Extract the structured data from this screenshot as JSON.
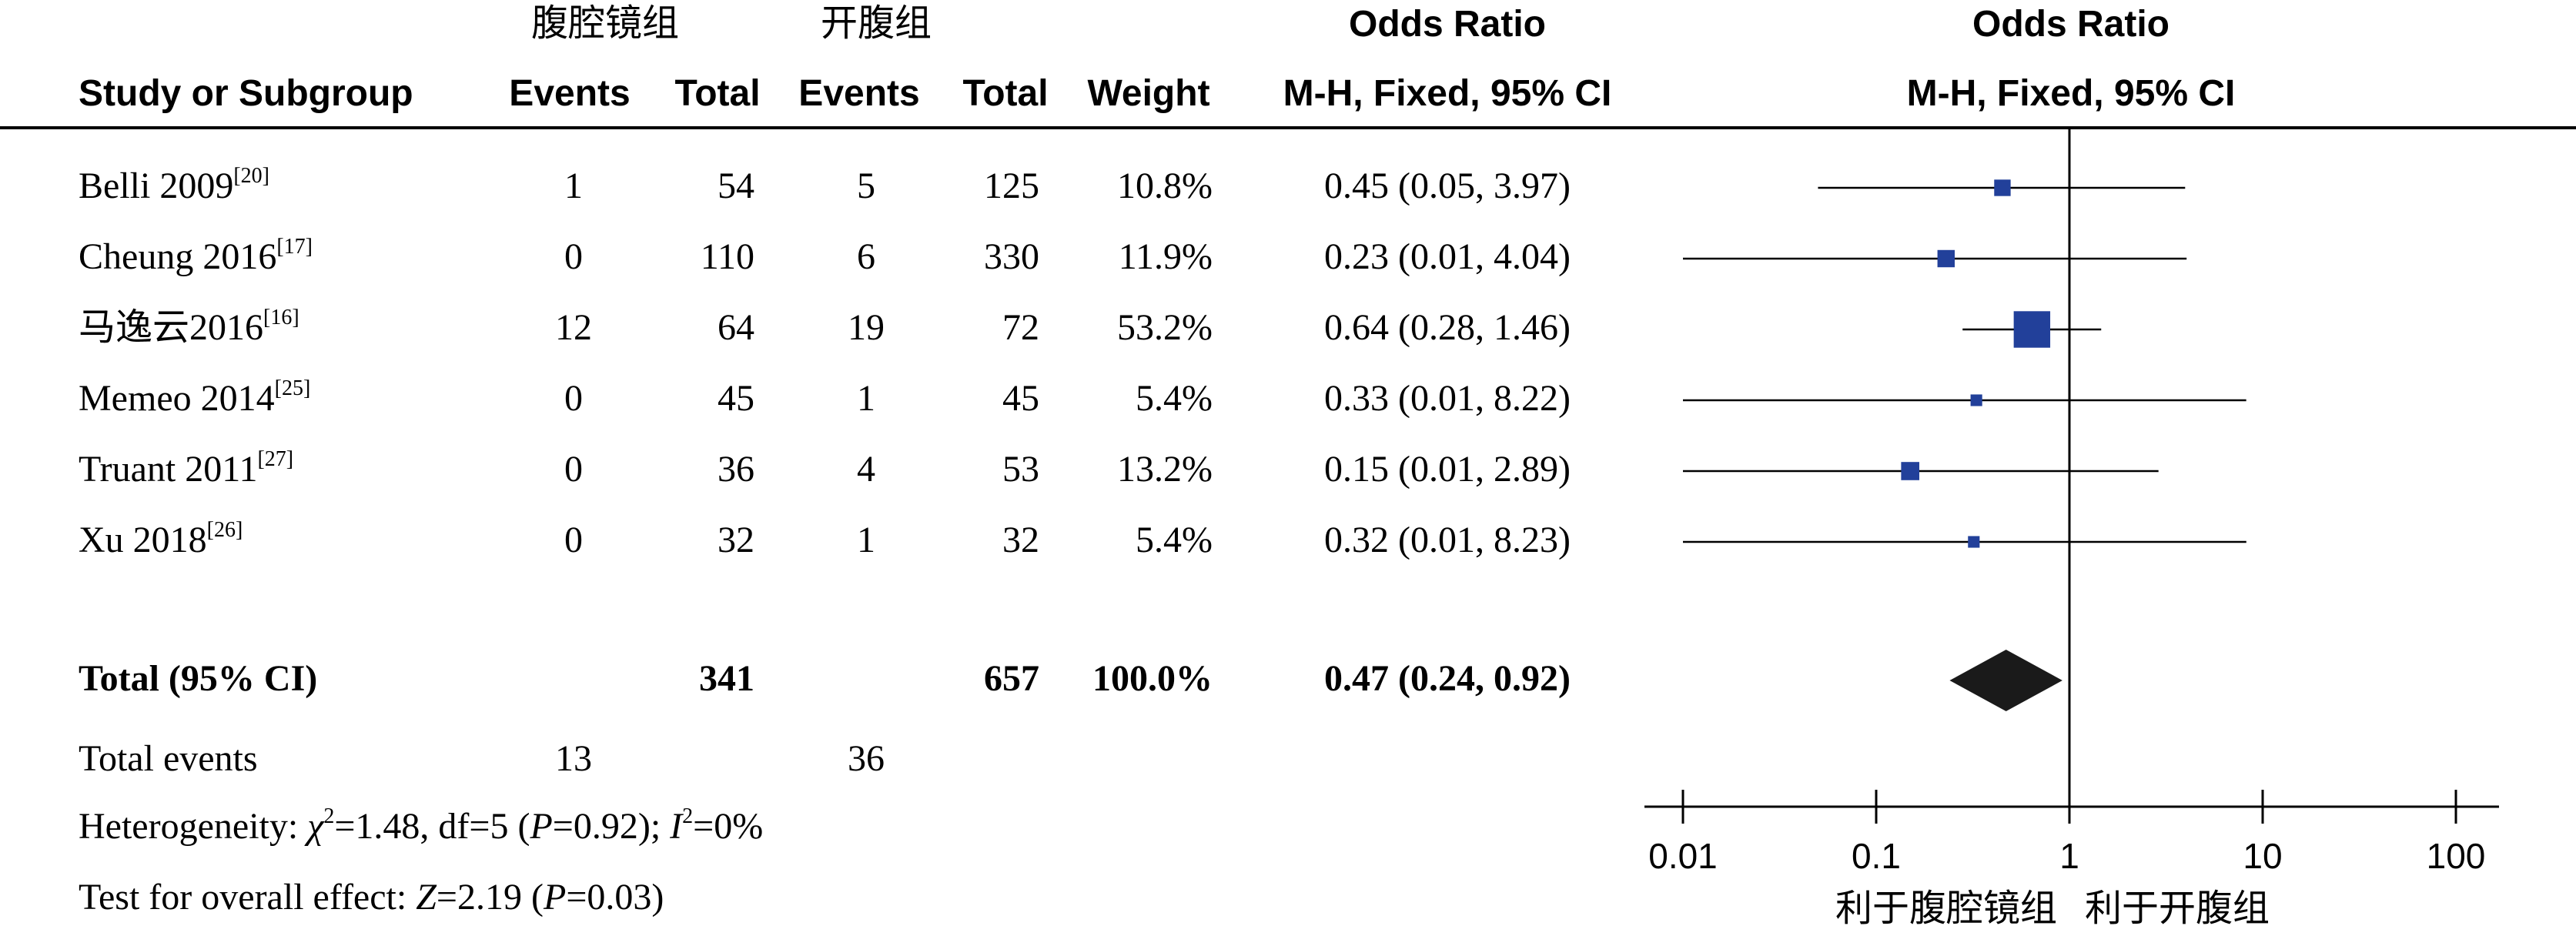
{
  "groups": {
    "experimental": "腹腔镜组",
    "control": "开腹组"
  },
  "headers": {
    "study": "Study or Subgroup",
    "events": "Events",
    "total": "Total",
    "weight": "Weight",
    "or_title": "Odds Ratio",
    "or_method": "M-H, Fixed, 95% CI",
    "plot_title": "Odds Ratio",
    "plot_method": "M-H, Fixed, 95% CI"
  },
  "rows": [
    {
      "study": "Belli 2009",
      "ref": "[20]",
      "e1": "1",
      "t1": "54",
      "e2": "5",
      "t2": "125",
      "weight": "10.8%",
      "ci": "0.45 (0.05, 3.97)"
    },
    {
      "study": "Cheung 2016",
      "ref": "[17]",
      "e1": "0",
      "t1": "110",
      "e2": "6",
      "t2": "330",
      "weight": "11.9%",
      "ci": "0.23 (0.01, 4.04)"
    },
    {
      "study": "马逸云2016",
      "ref": "[16]",
      "e1": "12",
      "t1": "64",
      "e2": "19",
      "t2": "72",
      "weight": "53.2%",
      "ci": "0.64 (0.28, 1.46)"
    },
    {
      "study": "Memeo 2014",
      "ref": "[25]",
      "e1": "0",
      "t1": "45",
      "e2": "1",
      "t2": "45",
      "weight": "5.4%",
      "ci": "0.33 (0.01, 8.22)"
    },
    {
      "study": "Truant 2011",
      "ref": "[27]",
      "e1": "0",
      "t1": "36",
      "e2": "4",
      "t2": "53",
      "weight": "13.2%",
      "ci": "0.15 (0.01, 2.89)"
    },
    {
      "study": "Xu 2018",
      "ref": "[26]",
      "e1": "0",
      "t1": "32",
      "e2": "1",
      "t2": "32",
      "weight": "5.4%",
      "ci": "0.32 (0.01, 8.23)"
    }
  ],
  "total": {
    "label": "Total (95% CI)",
    "t1": "341",
    "t2": "657",
    "weight": "100.0%",
    "ci": "0.47 (0.24, 0.92)"
  },
  "total_events": {
    "label": "Total events",
    "e1": "13",
    "e2": "36"
  },
  "heterogeneity": {
    "prefix": "Heterogeneity: ",
    "chi_sym": "χ",
    "chi_val": "=1.48, df=5 (",
    "p_sym": "P",
    "p_val": "=0.92); ",
    "i_sym": "I",
    "i_val": "=0%"
  },
  "overall": {
    "prefix": "Test for overall effect: ",
    "z_sym": "Z",
    "z_val": "=2.19 (",
    "p_sym": "P",
    "p_val": "=0.03)"
  },
  "chart_data": {
    "type": "forest",
    "scale": "log",
    "xlim": [
      0.01,
      100
    ],
    "ticks": [
      "0.01",
      "0.1",
      "1",
      "10",
      "100"
    ],
    "tick_values": [
      0.01,
      0.1,
      1,
      10,
      100
    ],
    "null_value": 1,
    "favours_left": "利于腹腔镜组",
    "favours_right": "利于开腹组",
    "marker_color": "#22409a",
    "diamond_color": "#1a1a1a",
    "studies": [
      {
        "or": 0.45,
        "lo": 0.05,
        "hi": 3.97,
        "weight": 10.8
      },
      {
        "or": 0.23,
        "lo": 0.01,
        "hi": 4.04,
        "weight": 11.9
      },
      {
        "or": 0.64,
        "lo": 0.28,
        "hi": 1.46,
        "weight": 53.2
      },
      {
        "or": 0.33,
        "lo": 0.01,
        "hi": 8.22,
        "weight": 5.4
      },
      {
        "or": 0.15,
        "lo": 0.01,
        "hi": 2.89,
        "weight": 13.2
      },
      {
        "or": 0.32,
        "lo": 0.01,
        "hi": 8.23,
        "weight": 5.4
      }
    ],
    "pooled": {
      "or": 0.47,
      "lo": 0.24,
      "hi": 0.92
    }
  }
}
